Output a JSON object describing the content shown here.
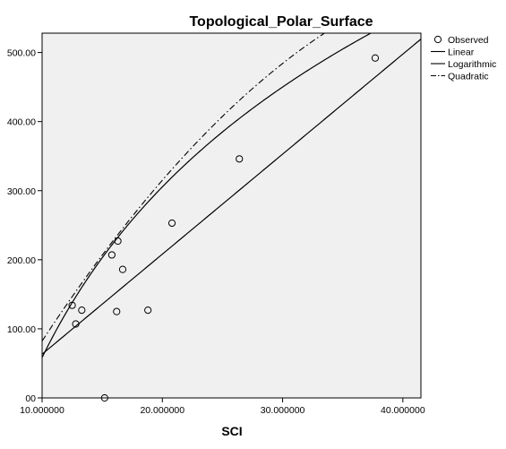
{
  "chart_data": {
    "type": "scatter",
    "title": "Topological_Polar_Surface",
    "xlabel": "SCI",
    "ylabel": "",
    "xlim": [
      10,
      41.5
    ],
    "ylim": [
      0,
      528
    ],
    "x_ticks": [
      10,
      20,
      30,
      40
    ],
    "x_tick_labels": [
      "10.000000",
      "20.000000",
      "30.000000",
      "40.000000"
    ],
    "y_ticks": [
      0,
      100,
      200,
      300,
      400,
      500
    ],
    "y_tick_labels": [
      "00",
      "100.00",
      "200.00",
      "300.00",
      "400.00",
      "500.00"
    ],
    "grid": false,
    "legend_position": "top-right",
    "legend": [
      {
        "label": "Observed",
        "marker": "open-circle"
      },
      {
        "label": "Linear",
        "line": "solid"
      },
      {
        "label": "Logarithmic",
        "line": "solid"
      },
      {
        "label": "Quadratic",
        "line": "dash-dot"
      }
    ],
    "observed": {
      "x": [
        12.5,
        12.8,
        13.3,
        15.2,
        15.8,
        16.2,
        16.3,
        16.7,
        18.8,
        20.8,
        26.4,
        37.7
      ],
      "y": [
        134,
        107,
        127,
        0,
        207,
        125,
        227,
        186,
        127,
        253,
        346,
        492
      ]
    },
    "linear": {
      "intercept": -81.5,
      "slope": 14.48
    },
    "logarithmic": {
      "a": -762.5,
      "b": 356.5
    },
    "quadratic": {
      "a": -214.0,
      "b": 32.82,
      "c": -0.3183
    },
    "colors": {
      "plot_background": "#f0f0f0",
      "marks": "#000000"
    }
  }
}
